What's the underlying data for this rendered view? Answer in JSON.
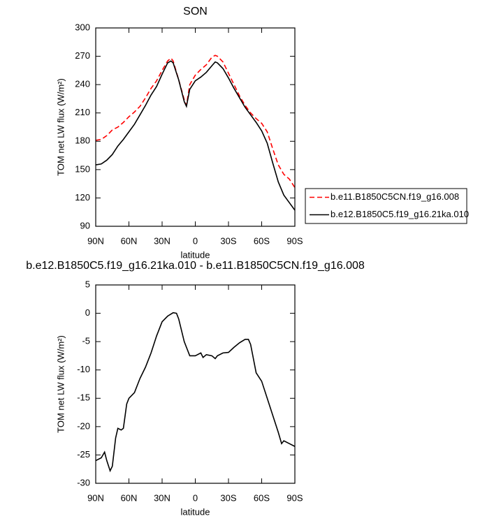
{
  "chart_data": [
    {
      "type": "line",
      "title": "SON",
      "xlabel": "latitude",
      "ylabel": "TOM net LW flux (W/m²)",
      "x": [
        90,
        85,
        80,
        75,
        70,
        65,
        60,
        55,
        50,
        45,
        40,
        35,
        30,
        25,
        22,
        20,
        15,
        10,
        8,
        5,
        0,
        -5,
        -10,
        -15,
        -18,
        -20,
        -25,
        -30,
        -35,
        -40,
        -45,
        -50,
        -55,
        -60,
        -65,
        -70,
        -75,
        -80,
        -85,
        -90
      ],
      "series": [
        {
          "name": "b.e11.B1850C5CN.f19_g16.008",
          "color": "#ff0000",
          "linestyle": "dashed",
          "values": [
            181,
            182,
            186,
            192,
            195,
            200,
            206,
            211,
            217,
            226,
            236,
            244,
            255,
            265,
            268,
            265,
            245,
            224,
            218,
            240,
            250,
            256,
            261,
            269,
            271,
            270,
            264,
            252,
            240,
            228,
            218,
            210,
            204,
            199,
            190,
            172,
            155,
            145,
            140,
            131
          ]
        },
        {
          "name": "b.e12.B1850C5.f19_g16.21ka.010",
          "color": "#000000",
          "linestyle": "solid",
          "values": [
            155,
            156,
            160,
            166,
            175,
            182,
            190,
            198,
            208,
            218,
            229,
            238,
            251,
            263,
            265,
            263,
            245,
            222,
            217,
            235,
            244,
            248,
            253,
            260,
            264,
            263,
            257,
            247,
            236,
            226,
            216,
            208,
            200,
            191,
            178,
            157,
            137,
            123,
            115,
            107
          ]
        }
      ],
      "xlim": [
        90,
        -90
      ],
      "xticks": [
        {
          "value": 90,
          "label": "90N"
        },
        {
          "value": 60,
          "label": "60N"
        },
        {
          "value": 30,
          "label": "30N"
        },
        0,
        {
          "value": -30,
          "label": "30S"
        },
        {
          "value": -60,
          "label": "60S"
        },
        {
          "value": -90,
          "label": "90S"
        }
      ],
      "ylim": [
        90,
        300
      ],
      "yticks": [
        90,
        120,
        150,
        180,
        210,
        240,
        270,
        300
      ],
      "legend": "right"
    },
    {
      "type": "line",
      "title": "b.e12.B1850C5.f19_g16.21ka.010 - b.e11.B1850C5CN.f19_g16.008",
      "xlabel": "latitude",
      "ylabel": "TOM net LW flux (W/m²)",
      "x": [
        90,
        85,
        82,
        80,
        77,
        75,
        72,
        70,
        67,
        65,
        62,
        60,
        55,
        50,
        45,
        40,
        35,
        30,
        25,
        20,
        17,
        15,
        10,
        5,
        0,
        -5,
        -7,
        -10,
        -15,
        -18,
        -20,
        -25,
        -30,
        -35,
        -40,
        -45,
        -48,
        -50,
        -55,
        -60,
        -65,
        -70,
        -75,
        -78,
        -80,
        -85,
        -90
      ],
      "series": [
        {
          "color": "#000000",
          "linestyle": "solid",
          "values": [
            -26,
            -25.5,
            -24.5,
            -26,
            -27.8,
            -27,
            -22,
            -20.3,
            -20.6,
            -20.3,
            -16,
            -15,
            -14,
            -11.5,
            -9.5,
            -7,
            -4,
            -1.5,
            -0.5,
            0.1,
            0,
            -1,
            -5,
            -7.5,
            -7.5,
            -7,
            -7.8,
            -7.3,
            -7.5,
            -8,
            -7.5,
            -7,
            -6.9,
            -6,
            -5.2,
            -4.6,
            -4.6,
            -5.5,
            -10.5,
            -12,
            -15,
            -18,
            -21,
            -23,
            -22.5,
            -23,
            -23.5
          ]
        }
      ],
      "xlim": [
        90,
        -90
      ],
      "xticks": [
        {
          "value": 90,
          "label": "90N"
        },
        {
          "value": 60,
          "label": "60N"
        },
        {
          "value": 30,
          "label": "30N"
        },
        0,
        {
          "value": -30,
          "label": "30S"
        },
        {
          "value": -60,
          "label": "60S"
        },
        {
          "value": -90,
          "label": "90S"
        }
      ],
      "ylim": [
        -30,
        5
      ],
      "yticks": [
        5,
        0,
        -5,
        -10,
        -15,
        -20,
        -25,
        -30
      ]
    }
  ]
}
